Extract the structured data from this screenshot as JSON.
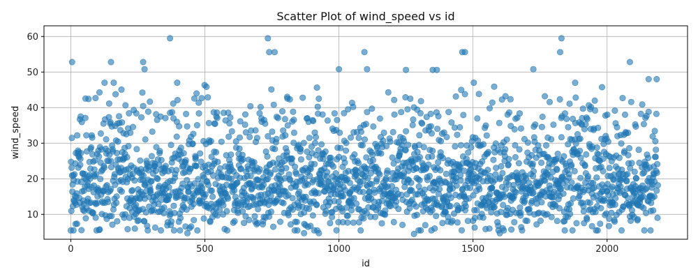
{
  "chart_data": {
    "type": "scatter",
    "title": "Scatter Plot of wind_speed vs id",
    "xlabel": "id",
    "ylabel": "wind_speed",
    "xlim": [
      -100,
      2300
    ],
    "ylim": [
      3,
      63
    ],
    "xticks": [
      0,
      500,
      1000,
      1500,
      2000
    ],
    "yticks": [
      10,
      20,
      30,
      40,
      50,
      60
    ],
    "grid": true,
    "color": "#1f77b4",
    "point_alpha": 0.6,
    "n_points": 2190,
    "data_summary": {
      "x_range": [
        0,
        2190
      ],
      "y_range": [
        4.5,
        59.5
      ],
      "dense_band": [
        8,
        30
      ]
    },
    "highlights": [
      {
        "x": 5,
        "y": 52.8
      },
      {
        "x": 150,
        "y": 52.8
      },
      {
        "x": 270,
        "y": 52.8
      },
      {
        "x": 275,
        "y": 50.8
      },
      {
        "x": 370,
        "y": 59.5
      },
      {
        "x": 735,
        "y": 59.5
      },
      {
        "x": 740,
        "y": 55.6
      },
      {
        "x": 760,
        "y": 55.6
      },
      {
        "x": 1000,
        "y": 50.8
      },
      {
        "x": 1095,
        "y": 55.6
      },
      {
        "x": 1105,
        "y": 50.8
      },
      {
        "x": 1250,
        "y": 50.6
      },
      {
        "x": 1350,
        "y": 50.6
      },
      {
        "x": 1365,
        "y": 50.6
      },
      {
        "x": 1460,
        "y": 55.6
      },
      {
        "x": 1470,
        "y": 55.6
      },
      {
        "x": 1725,
        "y": 50.8
      },
      {
        "x": 1825,
        "y": 55.6
      },
      {
        "x": 1830,
        "y": 59.5
      },
      {
        "x": 2085,
        "y": 52.8
      },
      {
        "x": 2155,
        "y": 48.0
      },
      {
        "x": 2185,
        "y": 48.0
      },
      {
        "x": 1280,
        "y": 4.5
      },
      {
        "x": 435,
        "y": 4.7
      },
      {
        "x": 870,
        "y": 4.7
      },
      {
        "x": 1600,
        "y": 4.7
      },
      {
        "x": 925,
        "y": 4.7
      }
    ]
  }
}
